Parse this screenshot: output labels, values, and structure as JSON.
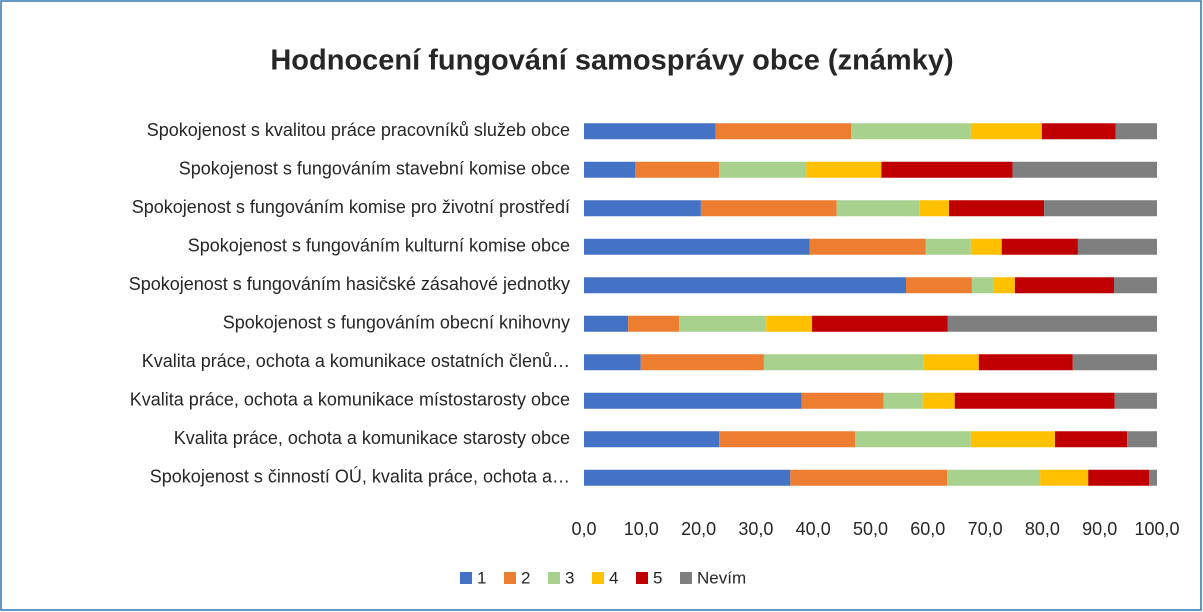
{
  "chart_data": {
    "type": "stacked_barh",
    "title": "Hodnocení fungování samosprávy obce (známky)",
    "categories": [
      "Spokojenost s kvalitou práce pracovníků služeb obce",
      "Spokojenost s fungováním stavební komise obce",
      "Spokojenost s fungováním komise pro životní prostředí",
      "Spokojenost s fungováním kulturní komise obce",
      "Spokojenost s fungováním hasičské zásahové jednotky",
      "Spokojenost s fungováním obecní knihovny",
      "Kvalita práce, ochota a komunikace ostatních členů…",
      "Kvalita práce, ochota a komunikace místostarosty obce",
      "Kvalita práce, ochota a komunikace starosty obce",
      "Spokojenost s činností OÚ, kvalita práce, ochota a…"
    ],
    "series": [
      {
        "name": "1",
        "color": "#4472c4",
        "values": [
          23.0,
          8.9,
          20.4,
          39.4,
          56.2,
          7.7,
          9.9,
          38.0,
          23.6,
          36.0
        ]
      },
      {
        "name": "2",
        "color": "#ed7d31",
        "values": [
          23.6,
          14.7,
          23.7,
          20.2,
          11.5,
          8.9,
          21.5,
          14.3,
          23.7,
          27.4
        ]
      },
      {
        "name": "3",
        "color": "#a9d18e",
        "values": [
          20.9,
          15.2,
          14.5,
          7.9,
          3.7,
          15.2,
          27.9,
          6.8,
          20.2,
          16.2
        ]
      },
      {
        "name": "4",
        "color": "#ffc000",
        "values": [
          12.4,
          13.1,
          5.1,
          5.4,
          3.8,
          8.0,
          9.6,
          5.6,
          14.7,
          8.4
        ]
      },
      {
        "name": "5",
        "color": "#c00000",
        "values": [
          12.9,
          22.9,
          16.6,
          13.3,
          17.3,
          23.7,
          16.4,
          27.9,
          12.6,
          10.6
        ]
      },
      {
        "name": "Nevím",
        "color": "#7f7f7f",
        "values": [
          7.2,
          25.2,
          19.7,
          13.8,
          7.5,
          36.5,
          14.7,
          7.4,
          5.2,
          1.4
        ]
      }
    ],
    "xlim": [
      0,
      100
    ],
    "xticks": [
      {
        "value": 0,
        "label": "0,0"
      },
      {
        "value": 10,
        "label": "10,0"
      },
      {
        "value": 20,
        "label": "20,0"
      },
      {
        "value": 30,
        "label": "30,0"
      },
      {
        "value": 40,
        "label": "40,0"
      },
      {
        "value": 50,
        "label": "50,0"
      },
      {
        "value": 60,
        "label": "60,0"
      },
      {
        "value": 70,
        "label": "70,0"
      },
      {
        "value": 80,
        "label": "80,0"
      },
      {
        "value": 90,
        "label": "90,0"
      },
      {
        "value": 100,
        "label": "100,0"
      }
    ],
    "legend": "bottom"
  }
}
